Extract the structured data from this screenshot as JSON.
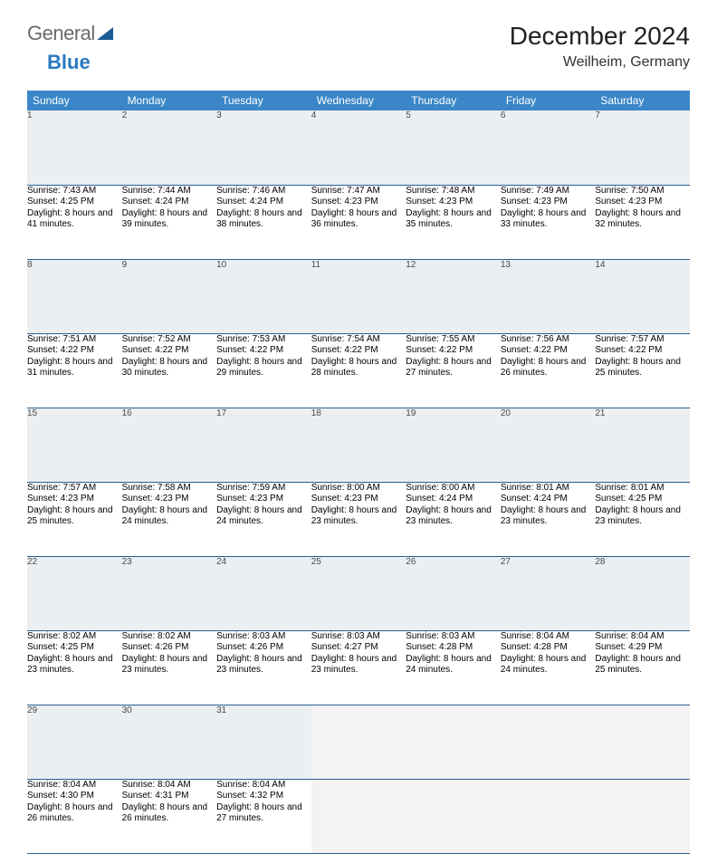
{
  "logo": {
    "text1": "General",
    "text2": "Blue"
  },
  "title": "December 2024",
  "location": "Weilheim, Germany",
  "colors": {
    "header_bg": "#3a86c8",
    "daynum_bg": "#eceff1",
    "rule": "#2a5f8f",
    "logo_gray": "#6a6a6a",
    "logo_blue": "#2a7ac0"
  },
  "day_headers": [
    "Sunday",
    "Monday",
    "Tuesday",
    "Wednesday",
    "Thursday",
    "Friday",
    "Saturday"
  ],
  "weeks": [
    {
      "nums": [
        "1",
        "2",
        "3",
        "4",
        "5",
        "6",
        "7"
      ],
      "cells": [
        {
          "sr": "7:43 AM",
          "ss": "4:25 PM",
          "dl": "8 hours and 41 minutes."
        },
        {
          "sr": "7:44 AM",
          "ss": "4:24 PM",
          "dl": "8 hours and 39 minutes."
        },
        {
          "sr": "7:46 AM",
          "ss": "4:24 PM",
          "dl": "8 hours and 38 minutes."
        },
        {
          "sr": "7:47 AM",
          "ss": "4:23 PM",
          "dl": "8 hours and 36 minutes."
        },
        {
          "sr": "7:48 AM",
          "ss": "4:23 PM",
          "dl": "8 hours and 35 minutes."
        },
        {
          "sr": "7:49 AM",
          "ss": "4:23 PM",
          "dl": "8 hours and 33 minutes."
        },
        {
          "sr": "7:50 AM",
          "ss": "4:23 PM",
          "dl": "8 hours and 32 minutes."
        }
      ]
    },
    {
      "nums": [
        "8",
        "9",
        "10",
        "11",
        "12",
        "13",
        "14"
      ],
      "cells": [
        {
          "sr": "7:51 AM",
          "ss": "4:22 PM",
          "dl": "8 hours and 31 minutes."
        },
        {
          "sr": "7:52 AM",
          "ss": "4:22 PM",
          "dl": "8 hours and 30 minutes."
        },
        {
          "sr": "7:53 AM",
          "ss": "4:22 PM",
          "dl": "8 hours and 29 minutes."
        },
        {
          "sr": "7:54 AM",
          "ss": "4:22 PM",
          "dl": "8 hours and 28 minutes."
        },
        {
          "sr": "7:55 AM",
          "ss": "4:22 PM",
          "dl": "8 hours and 27 minutes."
        },
        {
          "sr": "7:56 AM",
          "ss": "4:22 PM",
          "dl": "8 hours and 26 minutes."
        },
        {
          "sr": "7:57 AM",
          "ss": "4:22 PM",
          "dl": "8 hours and 25 minutes."
        }
      ]
    },
    {
      "nums": [
        "15",
        "16",
        "17",
        "18",
        "19",
        "20",
        "21"
      ],
      "cells": [
        {
          "sr": "7:57 AM",
          "ss": "4:23 PM",
          "dl": "8 hours and 25 minutes."
        },
        {
          "sr": "7:58 AM",
          "ss": "4:23 PM",
          "dl": "8 hours and 24 minutes."
        },
        {
          "sr": "7:59 AM",
          "ss": "4:23 PM",
          "dl": "8 hours and 24 minutes."
        },
        {
          "sr": "8:00 AM",
          "ss": "4:23 PM",
          "dl": "8 hours and 23 minutes."
        },
        {
          "sr": "8:00 AM",
          "ss": "4:24 PM",
          "dl": "8 hours and 23 minutes."
        },
        {
          "sr": "8:01 AM",
          "ss": "4:24 PM",
          "dl": "8 hours and 23 minutes."
        },
        {
          "sr": "8:01 AM",
          "ss": "4:25 PM",
          "dl": "8 hours and 23 minutes."
        }
      ]
    },
    {
      "nums": [
        "22",
        "23",
        "24",
        "25",
        "26",
        "27",
        "28"
      ],
      "cells": [
        {
          "sr": "8:02 AM",
          "ss": "4:25 PM",
          "dl": "8 hours and 23 minutes."
        },
        {
          "sr": "8:02 AM",
          "ss": "4:26 PM",
          "dl": "8 hours and 23 minutes."
        },
        {
          "sr": "8:03 AM",
          "ss": "4:26 PM",
          "dl": "8 hours and 23 minutes."
        },
        {
          "sr": "8:03 AM",
          "ss": "4:27 PM",
          "dl": "8 hours and 23 minutes."
        },
        {
          "sr": "8:03 AM",
          "ss": "4:28 PM",
          "dl": "8 hours and 24 minutes."
        },
        {
          "sr": "8:04 AM",
          "ss": "4:28 PM",
          "dl": "8 hours and 24 minutes."
        },
        {
          "sr": "8:04 AM",
          "ss": "4:29 PM",
          "dl": "8 hours and 25 minutes."
        }
      ]
    },
    {
      "nums": [
        "29",
        "30",
        "31",
        "",
        "",
        "",
        ""
      ],
      "cells": [
        {
          "sr": "8:04 AM",
          "ss": "4:30 PM",
          "dl": "8 hours and 26 minutes."
        },
        {
          "sr": "8:04 AM",
          "ss": "4:31 PM",
          "dl": "8 hours and 26 minutes."
        },
        {
          "sr": "8:04 AM",
          "ss": "4:32 PM",
          "dl": "8 hours and 27 minutes."
        },
        null,
        null,
        null,
        null
      ]
    }
  ],
  "labels": {
    "sunrise": "Sunrise: ",
    "sunset": "Sunset: ",
    "daylight": "Daylight: "
  }
}
